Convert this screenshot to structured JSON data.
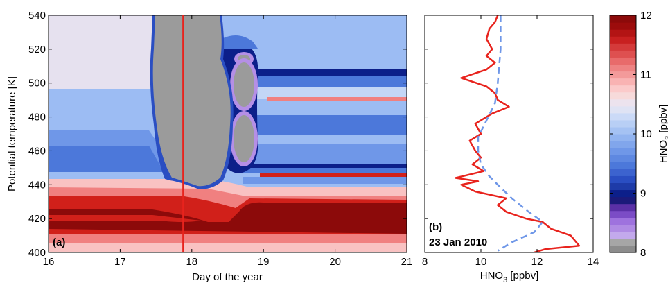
{
  "chart_data": [
    {
      "panel": "(a)",
      "type": "heatmap",
      "xlabel": "Day of the year",
      "ylabel": "Potential temperature [K]",
      "xlim": [
        16,
        21
      ],
      "ylim": [
        400,
        540
      ],
      "xticks": [
        16,
        17,
        18,
        19,
        20,
        21
      ],
      "yticks": [
        400,
        420,
        440,
        460,
        480,
        500,
        520,
        540
      ],
      "marker_line": {
        "x": 17.88,
        "color": "#e8231d"
      },
      "colormap_levels": [
        {
          "hno3": 8.0,
          "color": "#9b9b9b"
        },
        {
          "hno3": 8.2,
          "color": "#b58fe6"
        },
        {
          "hno3": 8.6,
          "color": "#6b3fbf"
        },
        {
          "hno3": 9.0,
          "color": "#0c1f8a"
        },
        {
          "hno3": 9.3,
          "color": "#2a4ec2"
        },
        {
          "hno3": 9.6,
          "color": "#4c78da"
        },
        {
          "hno3": 9.8,
          "color": "#6f97e8"
        },
        {
          "hno3": 10.0,
          "color": "#9cbcf3"
        },
        {
          "hno3": 10.3,
          "color": "#c3d6f6"
        },
        {
          "hno3": 10.7,
          "color": "#e6e1ef"
        },
        {
          "hno3": 11.0,
          "color": "#f9c2c2"
        },
        {
          "hno3": 11.3,
          "color": "#f08080"
        },
        {
          "hno3": 11.6,
          "color": "#d1201a"
        },
        {
          "hno3": 12.0,
          "color": "#8c0a0a"
        }
      ]
    },
    {
      "panel": "(b)",
      "type": "line",
      "date_label": "23 Jan 2010",
      "xlabel_main": "HNO",
      "xlabel_sub": "3",
      "xlabel_unit": " [ppbv]",
      "xlim": [
        8,
        14
      ],
      "ylim": [
        400,
        540
      ],
      "xticks": [
        8,
        10,
        12,
        14
      ],
      "series": [
        {
          "style": "solid",
          "color": "#e8231d",
          "points": [
            [
              10.6,
              540
            ],
            [
              10.5,
              536
            ],
            [
              10.3,
              532
            ],
            [
              10.2,
              526
            ],
            [
              10.4,
              520
            ],
            [
              10.2,
              516
            ],
            [
              10.5,
              512
            ],
            [
              10.2,
              508
            ],
            [
              9.3,
              503
            ],
            [
              10.2,
              498
            ],
            [
              10.5,
              494
            ],
            [
              10.6,
              490
            ],
            [
              11.0,
              486
            ],
            [
              10.4,
              482
            ],
            [
              9.8,
              476
            ],
            [
              10.0,
              470
            ],
            [
              9.6,
              466
            ],
            [
              9.8,
              460
            ],
            [
              10.0,
              456
            ],
            [
              9.7,
              452
            ],
            [
              10.1,
              448
            ],
            [
              9.1,
              444
            ],
            [
              9.9,
              442
            ],
            [
              9.3,
              440
            ],
            [
              9.8,
              436
            ],
            [
              10.9,
              432
            ],
            [
              10.6,
              428
            ],
            [
              10.9,
              424
            ],
            [
              11.6,
              420
            ],
            [
              12.2,
              418
            ],
            [
              12.5,
              414
            ],
            [
              13.2,
              410
            ],
            [
              13.5,
              404
            ],
            [
              12.3,
              402
            ],
            [
              11.9,
              400
            ]
          ]
        },
        {
          "style": "dashed",
          "color": "#6f97e8",
          "points": [
            [
              10.7,
              540
            ],
            [
              10.7,
              520
            ],
            [
              10.6,
              500
            ],
            [
              10.5,
              488
            ],
            [
              10.2,
              478
            ],
            [
              9.9,
              468
            ],
            [
              9.9,
              460
            ],
            [
              10.0,
              452
            ],
            [
              10.3,
              445
            ],
            [
              10.6,
              440
            ],
            [
              11.1,
              432
            ],
            [
              11.7,
              424
            ],
            [
              12.2,
              418
            ],
            [
              11.9,
              412
            ],
            [
              11.1,
              406
            ],
            [
              10.6,
              401
            ]
          ]
        }
      ]
    },
    {
      "panel": "colorbar",
      "type": "colorbar",
      "label_main": "HNO",
      "label_sub": "3",
      "label_unit": " [ppbv]",
      "range": [
        8,
        12
      ],
      "ticks": [
        8,
        9,
        10,
        11,
        12
      ],
      "colors_bottom_to_top": [
        "#8c8c8c",
        "#a6a6a6",
        "#c3a9ec",
        "#b08be4",
        "#9e72de",
        "#7b4cc6",
        "#5a30a6",
        "#1b1a7a",
        "#0c1f8a",
        "#1e3ba8",
        "#2a4ec2",
        "#3c63cf",
        "#4c78da",
        "#5e88e1",
        "#6f97e8",
        "#81a6ec",
        "#92b4f0",
        "#a5c2f3",
        "#b8cff5",
        "#cbdaf7",
        "#dfe3f4",
        "#ece3ee",
        "#f7dada",
        "#fbcaca",
        "#f9b3b3",
        "#f39a9a",
        "#ee8383",
        "#e86b6b",
        "#de5050",
        "#d43a3a",
        "#c82020",
        "#b31414",
        "#9c0c0c",
        "#8c0a0a"
      ]
    }
  ]
}
